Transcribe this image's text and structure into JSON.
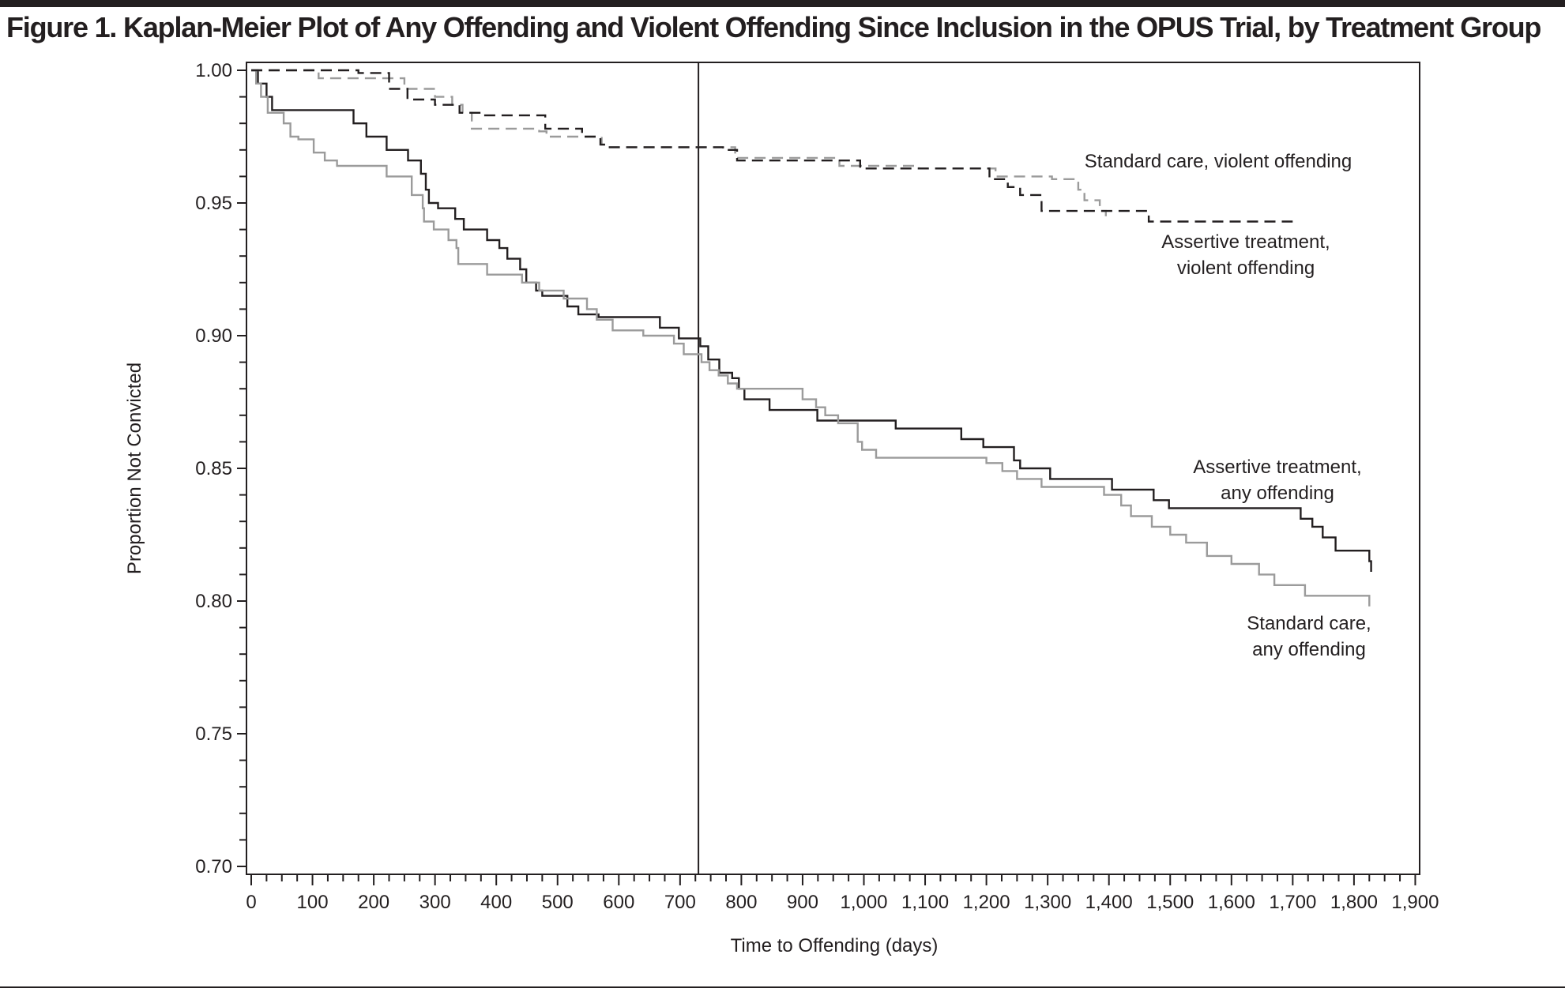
{
  "page": {
    "title": "Figure 1. Kaplan-Meier Plot of Any Offending and Violent Offending Since Inclusion in the OPUS Trial, by Treatment Group"
  },
  "chart_data": {
    "type": "line",
    "subtype": "kaplan-meier step",
    "title": "Figure 1. Kaplan-Meier Plot of Any Offending and Violent Offending Since Inclusion in the OPUS Trial, by Treatment Group",
    "xlabel": "Time to Offending (days)",
    "ylabel": "Proportion Not Convicted",
    "xlim": [
      0,
      1900
    ],
    "ylim": [
      0.7,
      1.0
    ],
    "x_ticks": [
      0,
      100,
      200,
      300,
      400,
      500,
      600,
      700,
      800,
      900,
      1000,
      1100,
      1200,
      1300,
      1400,
      1500,
      1600,
      1700,
      1800,
      1900
    ],
    "x_tick_labels": [
      "0",
      "100",
      "200",
      "300",
      "400",
      "500",
      "600",
      "700",
      "800",
      "900",
      "1,000",
      "1,100",
      "1,200",
      "1,300",
      "1,400",
      "1,500",
      "1,600",
      "1,700",
      "1,800",
      "1,900"
    ],
    "x_minor_tick_step": 25,
    "y_ticks": [
      1.0,
      0.95,
      0.9,
      0.85,
      0.8,
      0.75,
      0.7
    ],
    "y_tick_labels": [
      "1.00",
      "0.95",
      "0.90",
      "0.85",
      "0.80",
      "0.75",
      "0.70"
    ],
    "y_minor_tick_step": 0.01,
    "grid": false,
    "reference_line": {
      "orientation": "vertical",
      "x": 730
    },
    "legend": "none (direct labels on curves)",
    "series": [
      {
        "name": "Assertive treatment, any offending",
        "label_lines": [
          "Assertive treatment,",
          "any offending"
        ],
        "color": "#231f20",
        "style": "solid",
        "points": [
          [
            0,
            1.0
          ],
          [
            11,
            0.995
          ],
          [
            25,
            0.99
          ],
          [
            34,
            0.985
          ],
          [
            167,
            0.98
          ],
          [
            188,
            0.975
          ],
          [
            221,
            0.97
          ],
          [
            256,
            0.966
          ],
          [
            277,
            0.961
          ],
          [
            285,
            0.955
          ],
          [
            290,
            0.95
          ],
          [
            305,
            0.948
          ],
          [
            333,
            0.944
          ],
          [
            347,
            0.94
          ],
          [
            385,
            0.936
          ],
          [
            405,
            0.933
          ],
          [
            418,
            0.929
          ],
          [
            439,
            0.925
          ],
          [
            449,
            0.92
          ],
          [
            465,
            0.917
          ],
          [
            475,
            0.915
          ],
          [
            516,
            0.911
          ],
          [
            534,
            0.908
          ],
          [
            567,
            0.907
          ],
          [
            667,
            0.903
          ],
          [
            698,
            0.899
          ],
          [
            733,
            0.896
          ],
          [
            746,
            0.891
          ],
          [
            764,
            0.886
          ],
          [
            785,
            0.884
          ],
          [
            796,
            0.88
          ],
          [
            805,
            0.876
          ],
          [
            846,
            0.872
          ],
          [
            924,
            0.868
          ],
          [
            1052,
            0.865
          ],
          [
            1159,
            0.861
          ],
          [
            1195,
            0.858
          ],
          [
            1245,
            0.853
          ],
          [
            1255,
            0.85
          ],
          [
            1304,
            0.846
          ],
          [
            1405,
            0.842
          ],
          [
            1473,
            0.838
          ],
          [
            1498,
            0.835
          ],
          [
            1713,
            0.831
          ],
          [
            1732,
            0.828
          ],
          [
            1749,
            0.824
          ],
          [
            1770,
            0.819
          ],
          [
            1825,
            0.815
          ],
          [
            1828,
            0.811
          ]
        ]
      },
      {
        "name": "Standard care, any offending",
        "label_lines": [
          "Standard care,",
          "any offending"
        ],
        "color": "#9b9b9b",
        "style": "solid",
        "points": [
          [
            0,
            1.0
          ],
          [
            8,
            0.995
          ],
          [
            16,
            0.99
          ],
          [
            27,
            0.984
          ],
          [
            53,
            0.98
          ],
          [
            64,
            0.975
          ],
          [
            77,
            0.974
          ],
          [
            102,
            0.969
          ],
          [
            120,
            0.966
          ],
          [
            140,
            0.964
          ],
          [
            221,
            0.96
          ],
          [
            262,
            0.953
          ],
          [
            280,
            0.948
          ],
          [
            282,
            0.943
          ],
          [
            298,
            0.94
          ],
          [
            322,
            0.936
          ],
          [
            335,
            0.933
          ],
          [
            338,
            0.927
          ],
          [
            385,
            0.923
          ],
          [
            442,
            0.92
          ],
          [
            470,
            0.917
          ],
          [
            510,
            0.914
          ],
          [
            548,
            0.91
          ],
          [
            564,
            0.906
          ],
          [
            590,
            0.902
          ],
          [
            640,
            0.9
          ],
          [
            690,
            0.897
          ],
          [
            706,
            0.893
          ],
          [
            735,
            0.89
          ],
          [
            748,
            0.887
          ],
          [
            763,
            0.885
          ],
          [
            778,
            0.882
          ],
          [
            793,
            0.88
          ],
          [
            900,
            0.876
          ],
          [
            922,
            0.873
          ],
          [
            937,
            0.87
          ],
          [
            958,
            0.867
          ],
          [
            990,
            0.86
          ],
          [
            997,
            0.857
          ],
          [
            1020,
            0.854
          ],
          [
            1200,
            0.852
          ],
          [
            1226,
            0.849
          ],
          [
            1250,
            0.846
          ],
          [
            1290,
            0.843
          ],
          [
            1392,
            0.84
          ],
          [
            1420,
            0.836
          ],
          [
            1436,
            0.832
          ],
          [
            1470,
            0.828
          ],
          [
            1500,
            0.825
          ],
          [
            1526,
            0.822
          ],
          [
            1560,
            0.817
          ],
          [
            1600,
            0.814
          ],
          [
            1645,
            0.81
          ],
          [
            1670,
            0.806
          ],
          [
            1720,
            0.802
          ],
          [
            1825,
            0.798
          ]
        ]
      },
      {
        "name": "Standard care, violent offending",
        "label_lines": [
          "Standard care, violent offending"
        ],
        "color": "#9b9b9b",
        "style": "dashed",
        "points": [
          [
            0,
            1.0
          ],
          [
            110,
            0.997
          ],
          [
            250,
            0.993
          ],
          [
            300,
            0.99
          ],
          [
            328,
            0.987
          ],
          [
            345,
            0.984
          ],
          [
            360,
            0.978
          ],
          [
            470,
            0.977
          ],
          [
            482,
            0.975
          ],
          [
            572,
            0.972
          ],
          [
            583,
            0.971
          ],
          [
            790,
            0.967
          ],
          [
            960,
            0.964
          ],
          [
            1090,
            0.963
          ],
          [
            1215,
            0.96
          ],
          [
            1307,
            0.959
          ],
          [
            1350,
            0.955
          ],
          [
            1360,
            0.951
          ],
          [
            1385,
            0.947
          ],
          [
            1395,
            0.945
          ]
        ]
      },
      {
        "name": "Assertive treatment, violent offending",
        "label_lines": [
          "Assertive treatment,",
          "violent offending"
        ],
        "color": "#231f20",
        "style": "dashed",
        "points": [
          [
            0,
            1.0
          ],
          [
            175,
            0.999
          ],
          [
            225,
            0.993
          ],
          [
            255,
            0.989
          ],
          [
            300,
            0.987
          ],
          [
            340,
            0.984
          ],
          [
            375,
            0.983
          ],
          [
            480,
            0.978
          ],
          [
            540,
            0.975
          ],
          [
            570,
            0.972
          ],
          [
            580,
            0.971
          ],
          [
            770,
            0.97
          ],
          [
            793,
            0.966
          ],
          [
            994,
            0.963
          ],
          [
            1205,
            0.959
          ],
          [
            1235,
            0.956
          ],
          [
            1255,
            0.953
          ],
          [
            1290,
            0.947
          ],
          [
            1465,
            0.943
          ],
          [
            1700,
            0.943
          ]
        ]
      }
    ],
    "annotations": [
      {
        "text": "Standard care, violent offending",
        "series": "Standard care, violent offending"
      },
      {
        "text": "Assertive treatment, violent offending",
        "series": "Assertive treatment, violent offending"
      },
      {
        "text": "Assertive treatment, any offending",
        "series": "Assertive treatment, any offending"
      },
      {
        "text": "Standard care, any offending",
        "series": "Standard care, any offending"
      }
    ]
  }
}
